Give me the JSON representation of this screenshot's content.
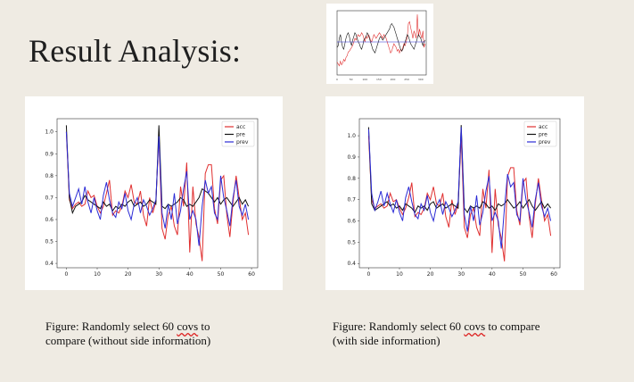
{
  "slide": {
    "title": "Result Analysis:",
    "caption_left": {
      "line1_pre": "Figure: Randomly select 60 ",
      "line1_word": "covs",
      "line1_post": " to",
      "line2": "compare (without side information)"
    },
    "caption_right": {
      "line1_pre": "Figure: Randomly select 60 ",
      "line1_word": "covs",
      "line1_post": " to compare",
      "line2": "(with side information)"
    }
  },
  "colors": {
    "acc": "#e03030",
    "pre": "#111111",
    "prev": "#2b2bd6"
  },
  "chart_data": [
    {
      "type": "line",
      "x_ticks": [
        0,
        10,
        20,
        30,
        40,
        50,
        60
      ],
      "y_ticks": [
        0.4,
        0.5,
        0.6,
        0.7,
        0.8,
        0.9,
        1.0
      ],
      "xlim": [
        -3,
        62
      ],
      "ylim": [
        0.38,
        1.06
      ],
      "legend_position": "top-right",
      "series": [
        {
          "name": "acc",
          "values": [
            1.0,
            0.69,
            0.65,
            0.67,
            0.68,
            0.66,
            0.67,
            0.73,
            0.7,
            0.71,
            0.66,
            0.63,
            0.66,
            0.72,
            0.78,
            0.62,
            0.64,
            0.63,
            0.66,
            0.73,
            0.7,
            0.76,
            0.68,
            0.67,
            0.73,
            0.62,
            0.57,
            0.7,
            0.63,
            0.68,
            0.98,
            0.56,
            0.51,
            0.62,
            0.66,
            0.57,
            0.53,
            0.75,
            0.66,
            0.86,
            0.45,
            0.75,
            0.58,
            0.52,
            0.41,
            0.81,
            0.85,
            0.85,
            0.65,
            0.58,
            0.78,
            0.8,
            0.62,
            0.52,
            0.68,
            0.8,
            0.7,
            0.6,
            0.63,
            0.53
          ]
        },
        {
          "name": "pre",
          "values": [
            1.03,
            0.7,
            0.63,
            0.66,
            0.67,
            0.68,
            0.71,
            0.69,
            0.68,
            0.67,
            0.66,
            0.65,
            0.68,
            0.66,
            0.67,
            0.64,
            0.66,
            0.65,
            0.67,
            0.66,
            0.68,
            0.69,
            0.66,
            0.67,
            0.68,
            0.66,
            0.67,
            0.69,
            0.68,
            0.67,
            1.03,
            0.66,
            0.65,
            0.67,
            0.66,
            0.67,
            0.68,
            0.7,
            0.69,
            0.66,
            0.67,
            0.66,
            0.68,
            0.7,
            0.74,
            0.73,
            0.72,
            0.7,
            0.68,
            0.7,
            0.67,
            0.69,
            0.7,
            0.68,
            0.66,
            0.68,
            0.7,
            0.67,
            0.69,
            0.66
          ]
        },
        {
          "name": "prev",
          "values": [
            1.0,
            0.72,
            0.66,
            0.7,
            0.74,
            0.67,
            0.75,
            0.68,
            0.63,
            0.7,
            0.64,
            0.6,
            0.71,
            0.77,
            0.69,
            0.63,
            0.61,
            0.68,
            0.65,
            0.72,
            0.64,
            0.6,
            0.67,
            0.7,
            0.63,
            0.69,
            0.66,
            0.62,
            0.65,
            0.69,
            0.98,
            0.63,
            0.56,
            0.67,
            0.6,
            0.72,
            0.58,
            0.64,
            0.74,
            0.82,
            0.6,
            0.64,
            0.6,
            0.48,
            0.66,
            0.78,
            0.72,
            0.75,
            0.63,
            0.6,
            0.8,
            0.7,
            0.64,
            0.57,
            0.7,
            0.78,
            0.66,
            0.62,
            0.67,
            0.6
          ]
        }
      ]
    },
    {
      "type": "line",
      "x_ticks": [
        0,
        10,
        20,
        30,
        40,
        50,
        60
      ],
      "y_ticks": [
        0.4,
        0.5,
        0.6,
        0.7,
        0.8,
        0.9,
        1.0
      ],
      "xlim": [
        -3,
        62
      ],
      "ylim": [
        0.38,
        1.08
      ],
      "legend_position": "top-right",
      "series": [
        {
          "name": "acc",
          "values": [
            1.0,
            0.7,
            0.66,
            0.67,
            0.68,
            0.66,
            0.67,
            0.73,
            0.69,
            0.7,
            0.66,
            0.63,
            0.66,
            0.71,
            0.78,
            0.62,
            0.64,
            0.63,
            0.66,
            0.73,
            0.7,
            0.76,
            0.68,
            0.67,
            0.73,
            0.62,
            0.57,
            0.7,
            0.63,
            0.68,
            1.0,
            0.57,
            0.52,
            0.63,
            0.66,
            0.57,
            0.53,
            0.75,
            0.66,
            0.84,
            0.45,
            0.75,
            0.58,
            0.52,
            0.41,
            0.81,
            0.85,
            0.85,
            0.65,
            0.58,
            0.78,
            0.8,
            0.62,
            0.52,
            0.68,
            0.8,
            0.7,
            0.6,
            0.63,
            0.53
          ]
        },
        {
          "name": "pre",
          "values": [
            1.04,
            0.68,
            0.65,
            0.66,
            0.67,
            0.68,
            0.69,
            0.67,
            0.68,
            0.66,
            0.67,
            0.65,
            0.68,
            0.67,
            0.66,
            0.64,
            0.67,
            0.66,
            0.67,
            0.65,
            0.68,
            0.69,
            0.66,
            0.67,
            0.68,
            0.66,
            0.67,
            0.68,
            0.67,
            0.66,
            1.05,
            0.66,
            0.64,
            0.67,
            0.66,
            0.67,
            0.66,
            0.69,
            0.68,
            0.66,
            0.67,
            0.65,
            0.68,
            0.67,
            0.68,
            0.7,
            0.68,
            0.66,
            0.67,
            0.69,
            0.66,
            0.68,
            0.7,
            0.67,
            0.65,
            0.67,
            0.69,
            0.66,
            0.68,
            0.66
          ]
        },
        {
          "name": "prev",
          "values": [
            1.03,
            0.73,
            0.65,
            0.69,
            0.74,
            0.67,
            0.73,
            0.68,
            0.64,
            0.7,
            0.64,
            0.6,
            0.71,
            0.76,
            0.69,
            0.63,
            0.61,
            0.68,
            0.65,
            0.72,
            0.64,
            0.6,
            0.67,
            0.7,
            0.63,
            0.69,
            0.66,
            0.62,
            0.65,
            0.69,
            1.04,
            0.63,
            0.55,
            0.67,
            0.6,
            0.72,
            0.58,
            0.64,
            0.74,
            0.81,
            0.6,
            0.64,
            0.6,
            0.47,
            0.66,
            0.82,
            0.76,
            0.78,
            0.63,
            0.6,
            0.8,
            0.7,
            0.64,
            0.57,
            0.7,
            0.78,
            0.67,
            0.62,
            0.66,
            0.6
          ]
        }
      ]
    },
    {
      "type": "line",
      "x_ticks": [
        0,
        50,
        100,
        150,
        200,
        250,
        300
      ],
      "ylim": [
        0.3,
        1.0
      ],
      "legend_position": "none",
      "series": [
        {
          "name": "",
          "values": [
            0.44,
            0.42,
            0.4,
            0.45,
            0.41,
            0.43,
            0.47,
            0.45,
            0.49,
            0.51,
            0.55,
            0.56,
            0.58,
            0.6,
            0.62,
            0.66,
            0.7,
            0.68,
            0.72,
            0.74,
            0.72,
            0.73,
            0.76,
            0.74,
            0.7,
            0.66,
            0.72,
            0.7,
            0.74,
            0.72,
            0.68,
            0.66,
            0.7,
            0.74,
            0.72,
            0.7,
            0.72,
            0.74,
            0.76,
            0.74,
            0.72,
            0.7,
            0.74,
            0.72,
            0.7,
            0.66,
            0.62,
            0.58,
            0.54,
            0.56,
            0.6,
            0.64,
            0.62,
            0.6,
            0.56,
            0.58,
            0.54,
            0.58,
            0.56,
            0.6,
            0.64,
            0.62,
            0.66,
            0.72,
            0.86,
            0.88,
            0.82,
            0.76,
            0.7,
            0.78,
            0.74,
            0.7,
            0.96,
            0.72,
            0.8,
            0.74,
            0.7,
            0.78,
            0.6,
            0.64
          ]
        },
        {
          "name": "",
          "values": [
            0.6,
            0.62,
            0.7,
            0.74,
            0.66,
            0.6,
            0.58,
            0.64,
            0.7,
            0.74,
            0.76,
            0.72,
            0.66,
            0.62,
            0.68,
            0.72,
            0.76,
            0.74,
            0.7,
            0.66,
            0.64,
            0.6,
            0.58,
            0.62,
            0.68,
            0.7,
            0.72,
            0.76,
            0.74,
            0.7,
            0.66,
            0.62,
            0.58,
            0.56,
            0.54,
            0.58,
            0.62,
            0.66,
            0.7,
            0.72,
            0.7,
            0.68,
            0.7,
            0.72,
            0.74,
            0.76,
            0.78,
            0.8,
            0.84,
            0.86,
            0.84,
            0.82,
            0.78,
            0.74,
            0.7,
            0.66,
            0.62,
            0.58,
            0.56,
            0.58,
            0.62,
            0.66,
            0.7,
            0.74,
            0.72,
            0.68,
            0.64,
            0.62,
            0.6,
            0.58,
            0.62,
            0.66,
            0.7,
            0.74,
            0.72,
            0.7,
            0.66,
            0.62,
            0.66,
            0.68
          ]
        },
        {
          "name": "",
          "values": [
            0.66,
            0.66,
            0.66,
            0.66,
            0.66,
            0.66,
            0.66,
            0.66,
            0.66,
            0.66,
            0.66,
            0.66,
            0.66,
            0.66,
            0.66,
            0.66,
            0.66,
            0.66,
            0.66,
            0.66,
            0.66,
            0.66,
            0.66,
            0.66,
            0.66,
            0.66,
            0.66,
            0.66,
            0.66,
            0.66,
            0.66,
            0.66,
            0.66,
            0.66,
            0.66,
            0.66,
            0.66,
            0.66,
            0.66,
            0.66,
            0.66,
            0.66,
            0.66,
            0.66,
            0.66,
            0.66,
            0.66,
            0.66,
            0.66,
            0.66,
            0.66,
            0.66,
            0.66,
            0.66,
            0.66,
            0.66,
            0.66,
            0.66,
            0.66,
            0.66,
            0.66,
            0.66,
            0.66,
            0.66,
            0.66,
            0.66,
            0.66,
            0.66,
            0.66,
            0.66,
            0.66,
            0.66,
            0.66,
            0.66,
            0.66,
            0.66,
            0.66,
            0.66,
            0.66,
            0.66
          ]
        }
      ]
    }
  ]
}
